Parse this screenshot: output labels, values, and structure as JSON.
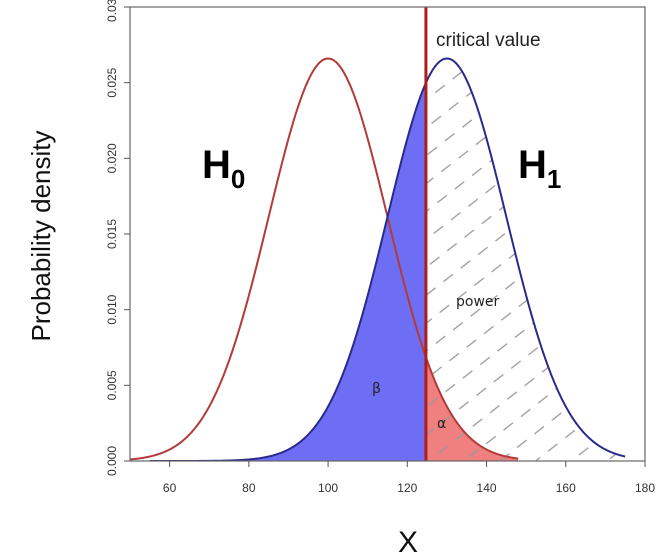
{
  "chart_data": {
    "type": "area",
    "xlabel": "X",
    "ylabel": "Probability density",
    "xlim": [
      50,
      180
    ],
    "ylim": [
      0,
      0.03
    ],
    "x_ticks": [
      "60",
      "80",
      "100",
      "120",
      "140",
      "160",
      "180"
    ],
    "y_ticks": [
      "0.000",
      "0.005",
      "0.010",
      "0.015",
      "0.020",
      "0.025",
      "0.030"
    ],
    "series": [
      {
        "name": "H0",
        "mean": 100,
        "sd": 15,
        "x_range": [
          50,
          148
        ],
        "color": "#b23a3a"
      },
      {
        "name": "H1",
        "mean": 130,
        "sd": 15,
        "x_range": [
          55,
          175
        ],
        "color": "#2a2a8c"
      }
    ],
    "critical_value": {
      "label": "critical value",
      "x": 124.7,
      "color": "#b01c1c"
    },
    "labels": {
      "h0_main": "H",
      "h0_sub": "0",
      "h1_main": "H",
      "h1_sub": "1",
      "beta": "β",
      "alpha": "α",
      "power": "power"
    },
    "regions": [
      {
        "name": "beta",
        "color": "#6e6ef5"
      },
      {
        "name": "alpha",
        "color": "#f08080"
      },
      {
        "name": "power",
        "fill": "hatched",
        "color": "#9a9a9a"
      }
    ],
    "grid": false
  }
}
